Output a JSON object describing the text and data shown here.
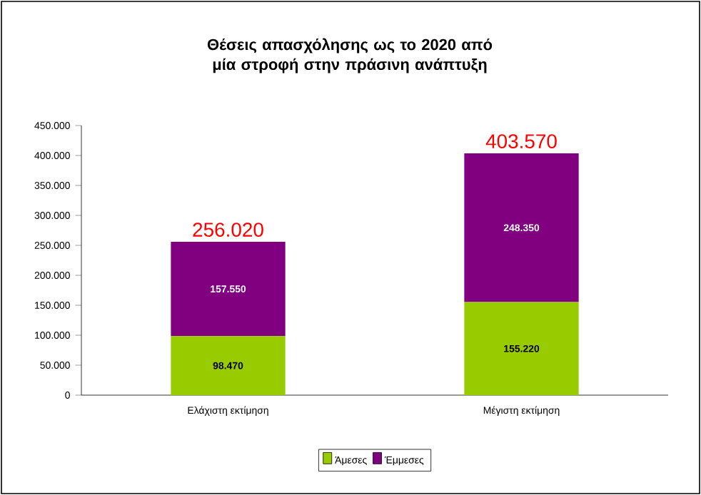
{
  "chart_data": {
    "type": "bar",
    "stacked": true,
    "title": "Θέσεις απασχόλησης ως το 2020 από μία στροφή στην πράσινη ανάπτυξη",
    "categories": [
      "Ελάχιστη εκτίμηση",
      "Μέγιστη εκτίμηση"
    ],
    "series": [
      {
        "name": "Άμεσες",
        "color": "#99cc00",
        "values": [
          98470,
          155220
        ],
        "value_labels": [
          "98.470",
          "155.220"
        ]
      },
      {
        "name": "Έμμεσες",
        "color": "#800080",
        "values": [
          157550,
          248350
        ],
        "value_labels": [
          "157.550",
          "248.350"
        ]
      }
    ],
    "totals": [
      "256.020",
      "403.570"
    ],
    "ylim": [
      0,
      450000
    ],
    "yticks": [
      {
        "value": 0,
        "label": "0"
      },
      {
        "value": 50000,
        "label": "50.000"
      },
      {
        "value": 100000,
        "label": "100.000"
      },
      {
        "value": 150000,
        "label": "150.000"
      },
      {
        "value": 200000,
        "label": "200.000"
      },
      {
        "value": 250000,
        "label": "250.000"
      },
      {
        "value": 300000,
        "label": "300.000"
      },
      {
        "value": 350000,
        "label": "350.000"
      },
      {
        "value": 400000,
        "label": "400.000"
      },
      {
        "value": 450000,
        "label": "450.000"
      }
    ],
    "legend": "bottom"
  }
}
